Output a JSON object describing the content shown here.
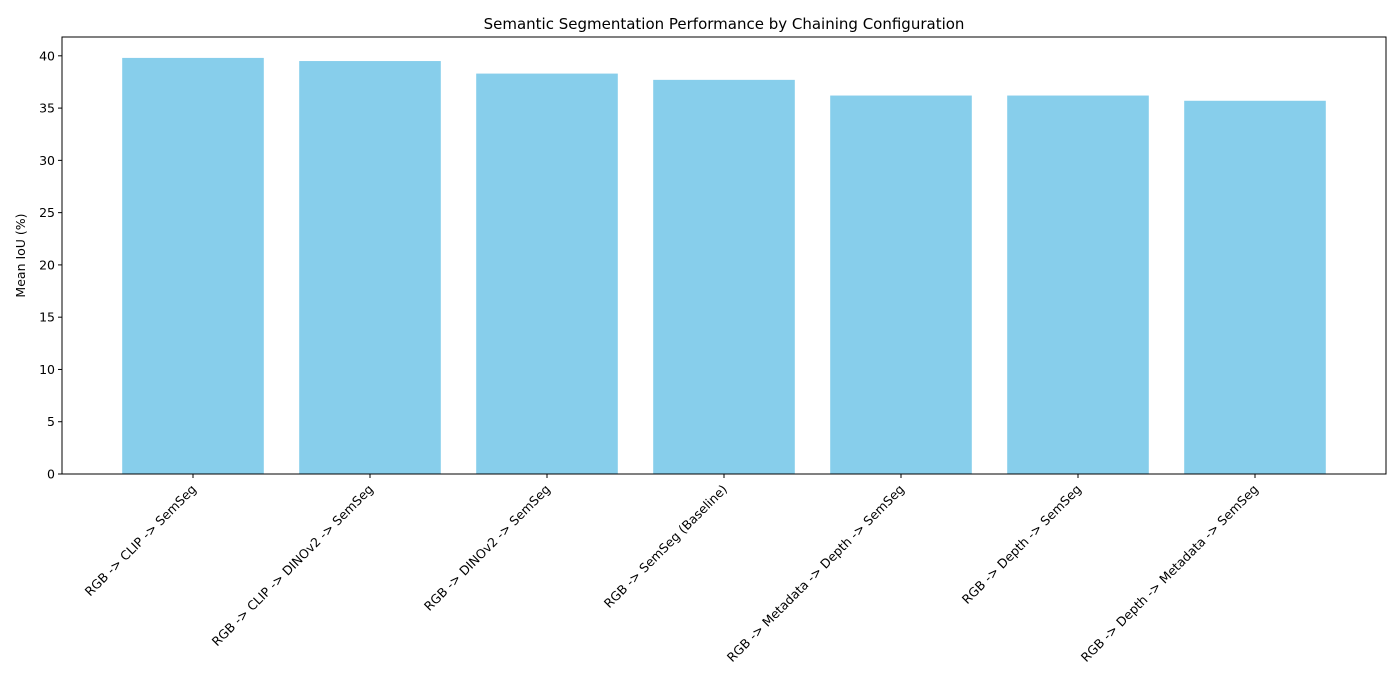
{
  "chart_data": {
    "type": "bar",
    "title": "Semantic Segmentation Performance by Chaining Configuration",
    "xlabel": "",
    "ylabel": "Mean IoU (%)",
    "categories": [
      "RGB -> CLIP -> SemSeg",
      "RGB -> CLIP -> DINOv2 -> SemSeg",
      "RGB -> DINOv2 -> SemSeg",
      "RGB -> SemSeg (Baseline)",
      "RGB -> Metadata -> Depth -> SemSeg",
      "RGB -> Depth -> SemSeg",
      "RGB -> Depth -> Metadata -> SemSeg"
    ],
    "values": [
      39.8,
      39.5,
      38.3,
      37.7,
      36.2,
      36.2,
      35.7
    ],
    "ylim": [
      0,
      41.8
    ],
    "yticks": [
      0,
      5,
      10,
      15,
      20,
      25,
      30,
      35,
      40
    ],
    "bar_color": "#87ceeb",
    "grid": false,
    "legend": "none"
  }
}
